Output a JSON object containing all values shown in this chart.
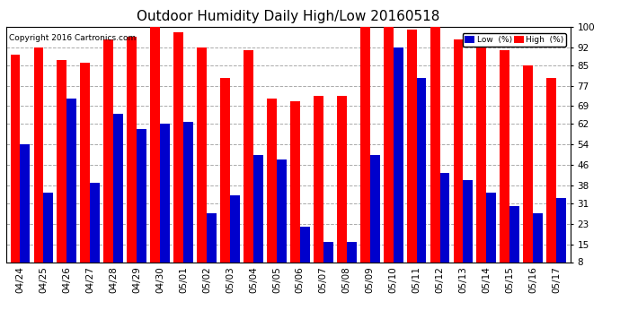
{
  "title": "Outdoor Humidity Daily High/Low 20160518",
  "copyright": "Copyright 2016 Cartronics.com",
  "legend_low": "Low  (%)",
  "legend_high": "High  (%)",
  "categories": [
    "04/24",
    "04/25",
    "04/26",
    "04/27",
    "04/28",
    "04/29",
    "04/30",
    "05/01",
    "05/02",
    "05/03",
    "05/04",
    "05/05",
    "05/06",
    "05/07",
    "05/08",
    "05/09",
    "05/10",
    "05/11",
    "05/12",
    "05/13",
    "05/14",
    "05/15",
    "05/16",
    "05/17"
  ],
  "high_values": [
    89,
    92,
    87,
    86,
    95,
    96,
    100,
    98,
    92,
    80,
    91,
    72,
    71,
    73,
    73,
    100,
    100,
    99,
    100,
    95,
    92,
    91,
    85,
    80
  ],
  "low_values": [
    54,
    35,
    72,
    39,
    66,
    60,
    62,
    63,
    27,
    34,
    50,
    48,
    22,
    16,
    16,
    50,
    92,
    80,
    43,
    40,
    35,
    30,
    27,
    33
  ],
  "ylim_low": 8,
  "ylim_high": 100,
  "yticks": [
    8,
    15,
    23,
    31,
    38,
    46,
    54,
    62,
    69,
    77,
    85,
    92,
    100
  ],
  "bar_color_high": "#ff0000",
  "bar_color_low": "#0000cc",
  "bg_color": "#ffffff",
  "grid_color": "#aaaaaa",
  "title_fontsize": 11,
  "tick_fontsize": 7.5,
  "bar_width": 0.42
}
